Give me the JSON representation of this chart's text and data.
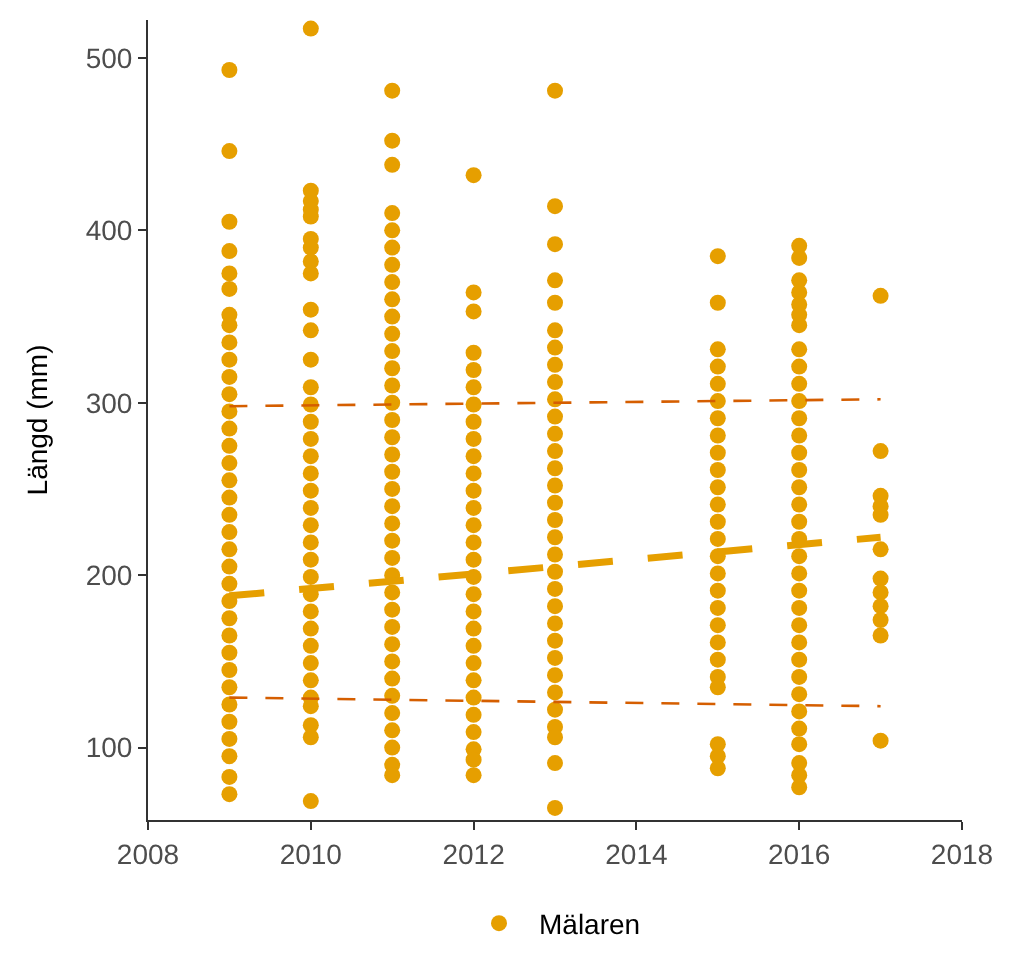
{
  "chart_data": {
    "type": "scatter",
    "ylabel": "Längd (mm)",
    "xlim": [
      2008,
      2018
    ],
    "xticks": [
      2008,
      2010,
      2012,
      2014,
      2016,
      2018
    ],
    "ylim": [
      58,
      522
    ],
    "yticks": [
      100,
      200,
      300,
      400,
      500
    ],
    "legend": "bottom",
    "marker": "circle",
    "series": [
      {
        "name": "Mälaren",
        "color": "#e69f00",
        "x": [
          2009,
          2009,
          2009,
          2009,
          2009,
          2009,
          2009,
          2009,
          2009,
          2009,
          2009,
          2009,
          2009,
          2009,
          2009,
          2009,
          2009,
          2009,
          2009,
          2009,
          2009,
          2009,
          2009,
          2009,
          2009,
          2009,
          2009,
          2009,
          2009,
          2009,
          2009,
          2009,
          2009,
          2009,
          2009,
          2010,
          2010,
          2010,
          2010,
          2010,
          2010,
          2010,
          2010,
          2010,
          2010,
          2010,
          2010,
          2010,
          2010,
          2010,
          2010,
          2010,
          2010,
          2010,
          2010,
          2010,
          2010,
          2010,
          2010,
          2010,
          2010,
          2010,
          2010,
          2010,
          2010,
          2010,
          2010,
          2010,
          2010,
          2010,
          2011,
          2011,
          2011,
          2011,
          2011,
          2011,
          2011,
          2011,
          2011,
          2011,
          2011,
          2011,
          2011,
          2011,
          2011,
          2011,
          2011,
          2011,
          2011,
          2011,
          2011,
          2011,
          2011,
          2011,
          2011,
          2011,
          2011,
          2011,
          2011,
          2011,
          2011,
          2011,
          2011,
          2011,
          2011,
          2011,
          2011,
          2012,
          2012,
          2012,
          2012,
          2012,
          2012,
          2012,
          2012,
          2012,
          2012,
          2012,
          2012,
          2012,
          2012,
          2012,
          2012,
          2012,
          2012,
          2012,
          2012,
          2012,
          2012,
          2012,
          2012,
          2012,
          2012,
          2012,
          2012,
          2012,
          2013,
          2013,
          2013,
          2013,
          2013,
          2013,
          2013,
          2013,
          2013,
          2013,
          2013,
          2013,
          2013,
          2013,
          2013,
          2013,
          2013,
          2013,
          2013,
          2013,
          2013,
          2013,
          2013,
          2013,
          2013,
          2013,
          2013,
          2013,
          2013,
          2013,
          2013,
          2013,
          2015,
          2015,
          2015,
          2015,
          2015,
          2015,
          2015,
          2015,
          2015,
          2015,
          2015,
          2015,
          2015,
          2015,
          2015,
          2015,
          2015,
          2015,
          2015,
          2015,
          2015,
          2015,
          2015,
          2015,
          2015,
          2015,
          2016,
          2016,
          2016,
          2016,
          2016,
          2016,
          2016,
          2016,
          2016,
          2016,
          2016,
          2016,
          2016,
          2016,
          2016,
          2016,
          2016,
          2016,
          2016,
          2016,
          2016,
          2016,
          2016,
          2016,
          2016,
          2016,
          2016,
          2016,
          2016,
          2016,
          2016,
          2016,
          2016,
          2016,
          2017,
          2017,
          2017,
          2017,
          2017,
          2017,
          2017,
          2017,
          2017,
          2017,
          2017,
          2017
        ],
        "values": [
          493,
          446,
          405,
          388,
          375,
          366,
          351,
          345,
          335,
          325,
          315,
          305,
          295,
          285,
          275,
          265,
          255,
          245,
          235,
          225,
          215,
          205,
          195,
          185,
          175,
          165,
          155,
          145,
          135,
          125,
          115,
          105,
          95,
          83,
          73,
          517,
          423,
          417,
          412,
          408,
          395,
          390,
          382,
          375,
          354,
          342,
          325,
          309,
          299,
          289,
          279,
          269,
          259,
          249,
          239,
          229,
          219,
          209,
          199,
          189,
          179,
          169,
          159,
          149,
          139,
          129,
          124,
          113,
          106,
          69,
          481,
          452,
          438,
          410,
          400,
          390,
          380,
          370,
          360,
          350,
          340,
          330,
          320,
          310,
          300,
          290,
          280,
          270,
          260,
          250,
          240,
          230,
          220,
          210,
          200,
          190,
          180,
          170,
          160,
          150,
          140,
          130,
          120,
          110,
          100,
          90,
          84,
          432,
          364,
          353,
          329,
          319,
          309,
          299,
          289,
          279,
          269,
          259,
          249,
          239,
          229,
          219,
          209,
          199,
          189,
          179,
          169,
          159,
          149,
          139,
          129,
          119,
          109,
          99,
          93,
          84,
          481,
          414,
          392,
          371,
          358,
          342,
          332,
          322,
          312,
          302,
          292,
          282,
          272,
          262,
          252,
          242,
          232,
          222,
          212,
          202,
          192,
          182,
          172,
          162,
          152,
          142,
          132,
          122,
          112,
          106,
          91,
          65,
          385,
          358,
          331,
          321,
          311,
          301,
          291,
          281,
          271,
          261,
          251,
          241,
          231,
          221,
          211,
          201,
          191,
          181,
          171,
          161,
          151,
          141,
          135,
          102,
          95,
          88,
          391,
          384,
          371,
          364,
          357,
          351,
          345,
          331,
          321,
          311,
          301,
          291,
          281,
          271,
          261,
          251,
          241,
          231,
          221,
          211,
          201,
          191,
          181,
          171,
          161,
          151,
          141,
          131,
          121,
          111,
          102,
          91,
          84,
          77,
          362,
          272,
          246,
          240,
          235,
          215,
          198,
          190,
          182,
          174,
          165,
          104
        ]
      },
      {
        "type": "line",
        "color": "#e69f00",
        "line_style": "dashed",
        "marker": "none",
        "x": [
          2009,
          2017
        ],
        "values": [
          188,
          222
        ]
      },
      {
        "type": "line",
        "color": "#d55e00",
        "line_style": "dashed",
        "marker": "none",
        "x": [
          2009,
          2017
        ],
        "values": [
          298,
          302
        ]
      },
      {
        "type": "line",
        "color": "#d55e00",
        "line_style": "dashed",
        "marker": "none",
        "x": [
          2009,
          2017
        ],
        "values": [
          129,
          124
        ]
      }
    ]
  }
}
